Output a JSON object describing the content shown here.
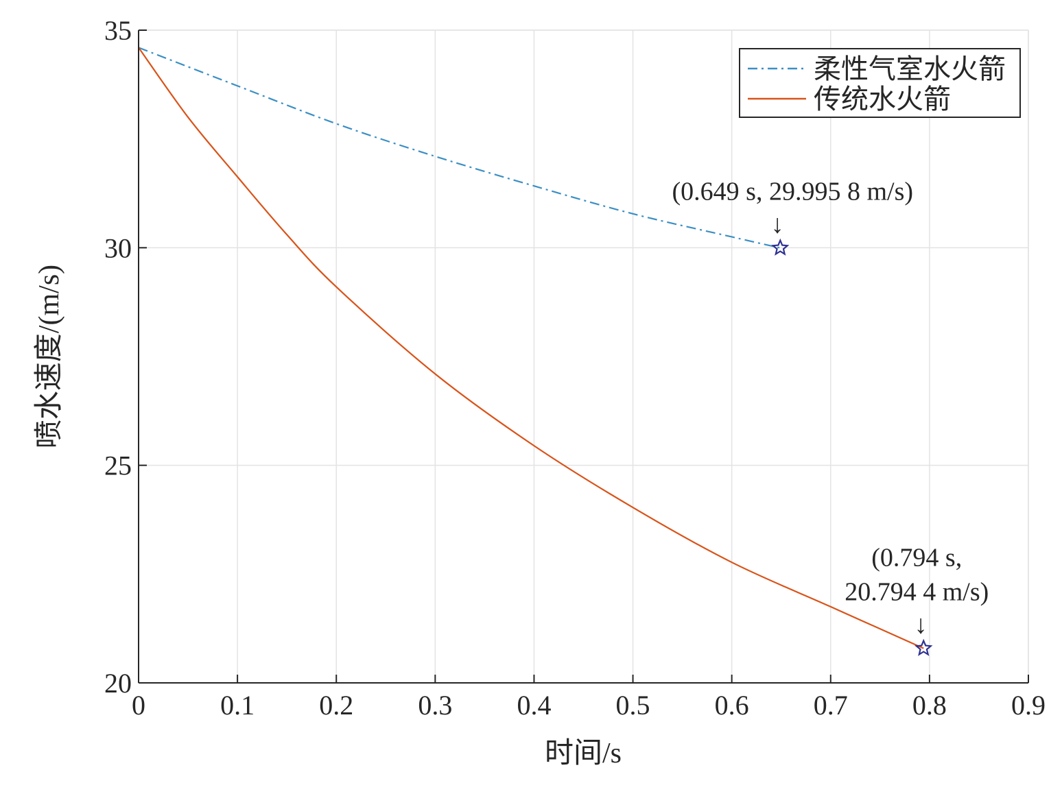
{
  "chart_data": {
    "type": "line",
    "title": "",
    "xlabel": "时间/s",
    "ylabel": "喷水速度/(m/s)",
    "xlim": [
      0,
      0.9
    ],
    "ylim": [
      20,
      35
    ],
    "xticks": [
      "0",
      "0.1",
      "0.2",
      "0.3",
      "0.4",
      "0.5",
      "0.6",
      "0.7",
      "0.8",
      "0.9"
    ],
    "yticks": [
      "20",
      "25",
      "30",
      "35"
    ],
    "grid": true,
    "legend_position": "top-right",
    "series": [
      {
        "name": "柔性气室水火箭",
        "color": "#3b8fc4",
        "style": "dash-dot",
        "x": [
          0,
          0.1,
          0.2,
          0.3,
          0.4,
          0.5,
          0.6,
          0.649
        ],
        "y": [
          34.6,
          33.72,
          32.85,
          32.1,
          31.42,
          30.78,
          30.25,
          29.9958
        ]
      },
      {
        "name": "传统水火箭",
        "color": "#d95319",
        "style": "solid",
        "x": [
          0,
          0.05,
          0.1,
          0.15,
          0.2,
          0.3,
          0.4,
          0.5,
          0.6,
          0.7,
          0.794
        ],
        "y": [
          34.6,
          33.0,
          31.63,
          30.3,
          29.1,
          27.1,
          25.45,
          24.03,
          22.77,
          21.75,
          20.7944
        ]
      }
    ],
    "annotations": [
      {
        "lines": [
          "(0.649 s, 29.995 8 m/s)"
        ],
        "x": 0.649,
        "y": 29.9958,
        "marker": "star",
        "arrow": "↓"
      },
      {
        "lines": [
          "(0.794 s,",
          "20.794 4 m/s)"
        ],
        "x": 0.794,
        "y": 20.7944,
        "marker": "star",
        "arrow": "↓"
      }
    ],
    "marker_color": "#2e3192"
  }
}
